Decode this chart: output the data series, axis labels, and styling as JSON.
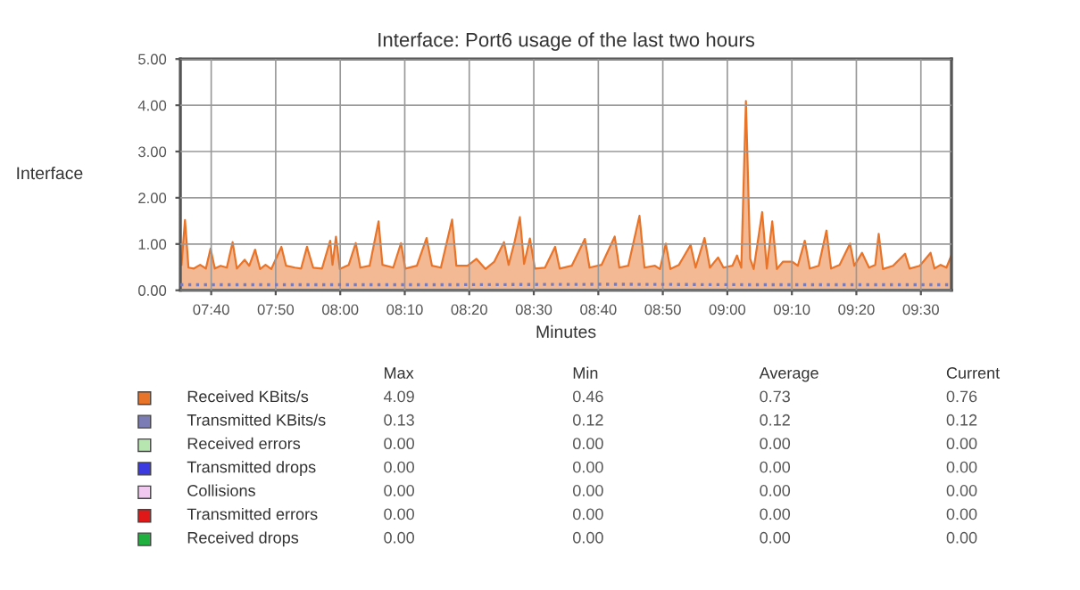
{
  "chart_data": {
    "type": "area",
    "title": "Interface: Port6 usage of the last two hours",
    "xlabel": "Minutes",
    "ylabel": "Interface",
    "xlim": [
      7.587,
      9.579
    ],
    "ylim": [
      0,
      5
    ],
    "xticks": [
      {
        "value": 7.6667,
        "label": "07:40"
      },
      {
        "value": 7.8333,
        "label": "07:50"
      },
      {
        "value": 8.0,
        "label": "08:00"
      },
      {
        "value": 8.1667,
        "label": "08:10"
      },
      {
        "value": 8.3333,
        "label": "08:20"
      },
      {
        "value": 8.5,
        "label": "08:30"
      },
      {
        "value": 8.6667,
        "label": "08:40"
      },
      {
        "value": 8.8333,
        "label": "08:50"
      },
      {
        "value": 9.0,
        "label": "09:00"
      },
      {
        "value": 9.1667,
        "label": "09:10"
      },
      {
        "value": 9.3333,
        "label": "09:20"
      },
      {
        "value": 9.5,
        "label": "09:30"
      }
    ],
    "yticks": [
      {
        "value": 0,
        "label": "0.00"
      },
      {
        "value": 1,
        "label": "1.00"
      },
      {
        "value": 2,
        "label": "2.00"
      },
      {
        "value": 3,
        "label": "3.00"
      },
      {
        "value": 4,
        "label": "4.00"
      },
      {
        "value": 5,
        "label": "5.00"
      }
    ],
    "grid": true,
    "legend": "bottom",
    "series": [
      {
        "name": "Received KBits/s",
        "color": "#e8742a",
        "x": [
          7.59,
          7.599,
          7.608,
          7.622,
          7.638,
          7.653,
          7.665,
          7.676,
          7.691,
          7.707,
          7.722,
          7.733,
          7.753,
          7.765,
          7.78,
          7.793,
          7.807,
          7.822,
          7.848,
          7.86,
          7.883,
          7.899,
          7.914,
          7.93,
          7.953,
          7.974,
          7.98,
          7.989,
          7.999,
          8.022,
          8.04,
          8.052,
          8.076,
          8.099,
          8.109,
          8.137,
          8.157,
          8.168,
          8.198,
          8.223,
          8.237,
          8.26,
          8.289,
          8.3,
          8.329,
          8.352,
          8.375,
          8.398,
          8.423,
          8.435,
          8.451,
          8.464,
          8.475,
          8.49,
          8.503,
          8.529,
          8.555,
          8.567,
          8.598,
          8.632,
          8.644,
          8.675,
          8.709,
          8.721,
          8.744,
          8.773,
          8.786,
          8.813,
          8.826,
          8.841,
          8.853,
          8.875,
          8.905,
          8.918,
          8.941,
          8.955,
          8.976,
          8.99,
          9.013,
          9.025,
          9.036,
          9.048,
          9.059,
          9.068,
          9.09,
          9.102,
          9.116,
          9.128,
          9.144,
          9.167,
          9.182,
          9.2,
          9.213,
          9.236,
          9.256,
          9.268,
          9.29,
          9.317,
          9.328,
          9.348,
          9.366,
          9.382,
          9.391,
          9.402,
          9.428,
          9.459,
          9.471,
          9.497,
          9.525,
          9.535,
          9.551,
          9.566,
          9.579
        ],
        "values": [
          0.55,
          1.52,
          0.49,
          0.47,
          0.55,
          0.47,
          0.9,
          0.47,
          0.53,
          0.49,
          1.04,
          0.47,
          0.66,
          0.53,
          0.88,
          0.46,
          0.55,
          0.46,
          0.94,
          0.53,
          0.49,
          0.47,
          0.94,
          0.49,
          0.47,
          1.07,
          0.55,
          1.16,
          0.46,
          0.55,
          1.02,
          0.49,
          0.53,
          1.49,
          0.55,
          0.49,
          1.02,
          0.47,
          0.53,
          1.13,
          0.53,
          0.49,
          1.53,
          0.53,
          0.53,
          0.68,
          0.46,
          0.62,
          1.04,
          0.55,
          1.07,
          1.58,
          0.57,
          1.12,
          0.47,
          0.49,
          0.94,
          0.47,
          0.53,
          1.11,
          0.49,
          0.55,
          1.16,
          0.49,
          0.53,
          1.61,
          0.49,
          0.53,
          0.46,
          1.01,
          0.46,
          0.55,
          0.98,
          0.49,
          1.13,
          0.49,
          0.71,
          0.49,
          0.53,
          0.75,
          0.49,
          4.09,
          0.68,
          0.46,
          1.69,
          0.47,
          1.49,
          0.46,
          0.62,
          0.62,
          0.53,
          1.07,
          0.47,
          0.53,
          1.29,
          0.47,
          0.55,
          1.01,
          0.53,
          0.81,
          0.49,
          0.55,
          1.22,
          0.46,
          0.53,
          0.79,
          0.47,
          0.53,
          0.81,
          0.47,
          0.55,
          0.49,
          0.76
        ]
      },
      {
        "name": "Transmitted KBits/s",
        "type": "line",
        "line_style": "dotted",
        "color": "#7b7bb5",
        "x": [
          7.587,
          7.9,
          8.3,
          8.7,
          9.05,
          9.579
        ],
        "values": [
          0.12,
          0.12,
          0.12,
          0.13,
          0.12,
          0.12
        ]
      },
      {
        "name": "Received errors",
        "type": "line",
        "color": "#b8e6b0"
      },
      {
        "name": "Transmitted drops",
        "type": "line",
        "color": "#3a3ae0"
      },
      {
        "name": "Collisions",
        "type": "line",
        "color": "#f0c8f0"
      },
      {
        "name": "Transmitted errors",
        "type": "line",
        "color": "#e01818"
      },
      {
        "name": "Received drops",
        "type": "line",
        "color": "#20b040"
      }
    ],
    "annotations": [
      "Max",
      "Min",
      "Average",
      "Current",
      "4.09",
      "0.46",
      "0.73",
      "0.76",
      "0.13",
      "0.12",
      "0.12",
      "0.12",
      "0.00",
      "0.00",
      "0.00",
      "0.00",
      "0.00",
      "0.00",
      "0.00",
      "0.00",
      "0.00",
      "0.00",
      "0.00",
      "0.00",
      "0.00",
      "0.00",
      "0.00",
      "0.00",
      "0.00",
      "0.00",
      "0.00",
      "0.00"
    ]
  }
}
